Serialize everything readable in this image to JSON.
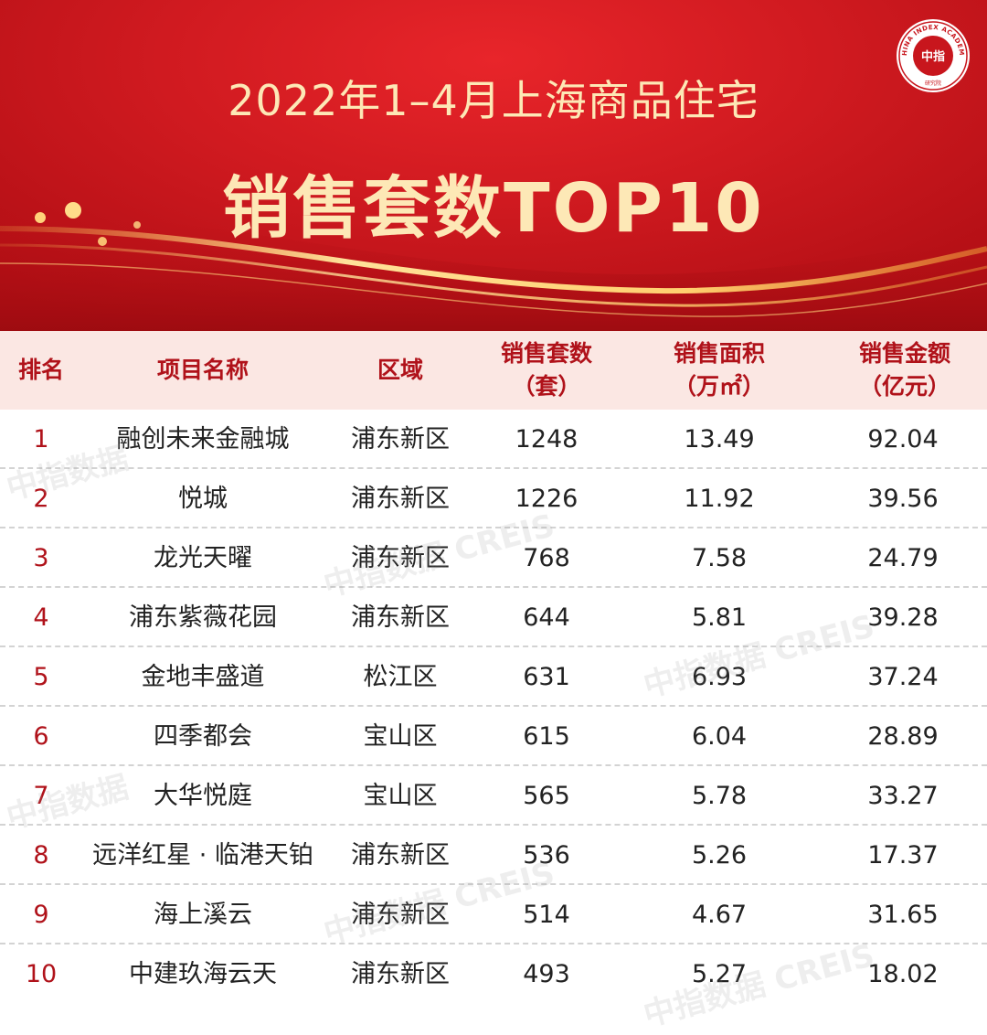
{
  "banner": {
    "title_line1": "2022年1–4月上海商品住宅",
    "title_line2": "销售套数TOP10",
    "logo_text": "中指",
    "logo_ring_text": "CHINA INDEX ACADEMY",
    "logo_bottom_text": "研究院"
  },
  "table": {
    "headers": {
      "rank": "排名",
      "name": "项目名称",
      "district": "区域",
      "units_line1": "销售套数",
      "units_line2": "（套）",
      "area_line1": "销售面积",
      "area_line2": "（万㎡）",
      "amount_line1": "销售金额",
      "amount_line2": "（亿元）"
    },
    "rows": [
      {
        "rank": "1",
        "name": "融创未来金融城",
        "district": "浦东新区",
        "units": "1248",
        "area": "13.49",
        "amount": "92.04"
      },
      {
        "rank": "2",
        "name": "悦城",
        "district": "浦东新区",
        "units": "1226",
        "area": "11.92",
        "amount": "39.56"
      },
      {
        "rank": "3",
        "name": "龙光天曜",
        "district": "浦东新区",
        "units": "768",
        "area": "7.58",
        "amount": "24.79"
      },
      {
        "rank": "4",
        "name": "浦东紫薇花园",
        "district": "浦东新区",
        "units": "644",
        "area": "5.81",
        "amount": "39.28"
      },
      {
        "rank": "5",
        "name": "金地丰盛道",
        "district": "松江区",
        "units": "631",
        "area": "6.93",
        "amount": "37.24"
      },
      {
        "rank": "6",
        "name": "四季都会",
        "district": "宝山区",
        "units": "615",
        "area": "6.04",
        "amount": "28.89"
      },
      {
        "rank": "7",
        "name": "大华悦庭",
        "district": "宝山区",
        "units": "565",
        "area": "5.78",
        "amount": "33.27"
      },
      {
        "rank": "8",
        "name": "远洋红星 · 临港天铂",
        "district": "浦东新区",
        "units": "536",
        "area": "5.26",
        "amount": "17.37"
      },
      {
        "rank": "9",
        "name": "海上溪云",
        "district": "浦东新区",
        "units": "514",
        "area": "4.67",
        "amount": "31.65"
      },
      {
        "rank": "10",
        "name": "中建玖海云天",
        "district": "浦东新区",
        "units": "493",
        "area": "5.27",
        "amount": "18.02"
      }
    ]
  },
  "watermarks": [
    "中指数据",
    "中指数据 CREIS",
    "中指数据 CREIS",
    "中指数据",
    "中指数据 CREIS",
    "中指数据 CREIS"
  ],
  "colors": {
    "banner_red": "#d01a20",
    "title_gold": "#fde8b6",
    "header_bg": "#fbe7e3",
    "header_text": "#b0121a",
    "rank_text": "#b0121a"
  }
}
